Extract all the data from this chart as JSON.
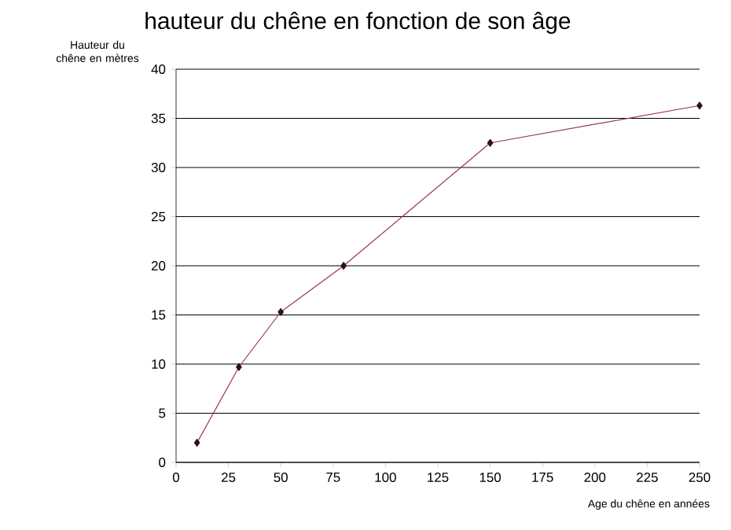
{
  "chart_data": {
    "type": "line",
    "title": "hauteur du chêne en fonction de son âge",
    "xlabel": "Age du chêne en années",
    "ylabel": "Hauteur du chêne en mètres",
    "x": [
      10,
      30,
      50,
      80,
      150,
      250
    ],
    "series": [
      {
        "color": "#993366",
        "values": [
          2,
          9.7,
          15.3,
          20,
          32.5,
          36.3
        ]
      }
    ],
    "xlim": [
      0,
      250
    ],
    "xticks": [
      0,
      25,
      50,
      75,
      100,
      125,
      150,
      175,
      200,
      225,
      250
    ],
    "ylim": [
      0,
      40
    ],
    "yticks": [
      0,
      5,
      10,
      15,
      20,
      25,
      30,
      35,
      40
    ],
    "grid": "y",
    "marker": "diamond",
    "line_style": "solid"
  }
}
